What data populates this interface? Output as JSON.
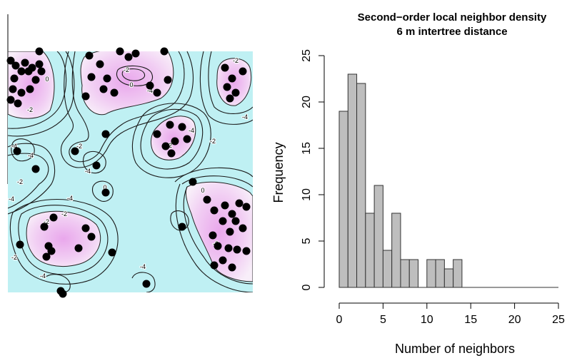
{
  "chart_data": [
    {
      "type": "map",
      "title": "",
      "contour_labels": [
        "-4",
        "-2",
        "0",
        "-2",
        "0",
        "-4",
        "-2",
        "-4",
        "-2",
        "-2",
        "-4",
        "-2",
        "-4",
        "0",
        "-4",
        "-2",
        "-4",
        "-4",
        "-2",
        "-2",
        "-2",
        "-4",
        "0",
        "-2",
        "-4"
      ],
      "colors": {
        "low": "#bff0f3",
        "high": "#e9a7ec",
        "points": "#000000"
      }
    },
    {
      "type": "bar",
      "title": "Second−order local neighbor density",
      "subtitle": "6 m intertree distance",
      "xlabel": "Number of neighbors",
      "ylabel": "Frequency",
      "xlim": [
        0,
        25
      ],
      "ylim": [
        0,
        25
      ],
      "xticks": [
        "0",
        "5",
        "10",
        "15",
        "20",
        "25"
      ],
      "yticks": [
        "0",
        "5",
        "10",
        "15",
        "20",
        "25"
      ],
      "bin_width": 1,
      "bins": [
        {
          "x": 0,
          "value": 19
        },
        {
          "x": 1,
          "value": 23
        },
        {
          "x": 2,
          "value": 22
        },
        {
          "x": 3,
          "value": 8
        },
        {
          "x": 4,
          "value": 11
        },
        {
          "x": 5,
          "value": 4
        },
        {
          "x": 6,
          "value": 8
        },
        {
          "x": 7,
          "value": 3
        },
        {
          "x": 8,
          "value": 3
        },
        {
          "x": 9,
          "value": 0
        },
        {
          "x": 10,
          "value": 3
        },
        {
          "x": 11,
          "value": 3
        },
        {
          "x": 12,
          "value": 2
        },
        {
          "x": 13,
          "value": 3
        }
      ],
      "colors": {
        "bar": "#bebebe",
        "edge": "#333333"
      }
    }
  ]
}
